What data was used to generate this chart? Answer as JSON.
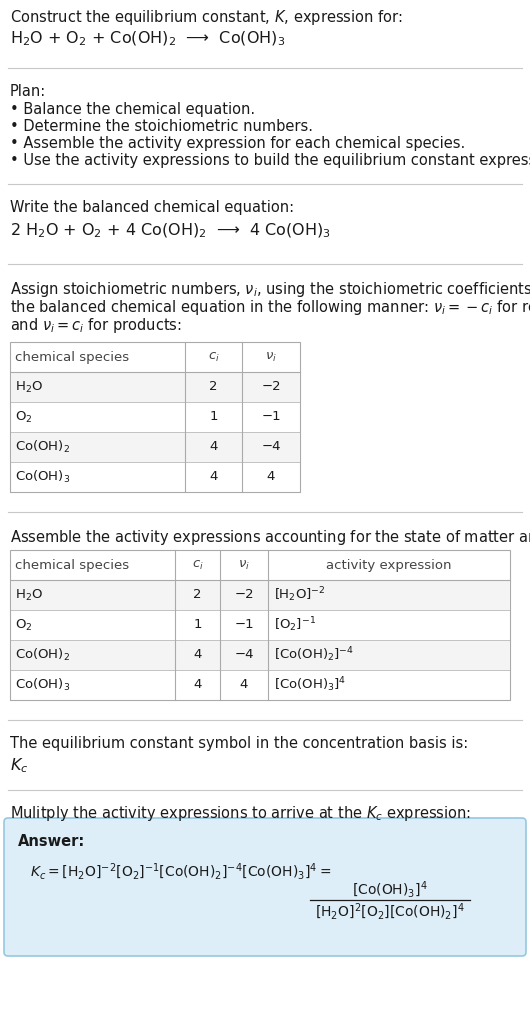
{
  "title_line1": "Construct the equilibrium constant, $K$, expression for:",
  "reaction_unbalanced": "H$_2$O + O$_2$ + Co(OH)$_2$  ⟶  Co(OH)$_3$",
  "plan_header": "Plan:",
  "plan_bullets": [
    "• Balance the chemical equation.",
    "• Determine the stoichiometric numbers.",
    "• Assemble the activity expression for each chemical species.",
    "• Use the activity expressions to build the equilibrium constant expression."
  ],
  "balanced_header": "Write the balanced chemical equation:",
  "reaction_balanced": "2 H$_2$O + O$_2$ + 4 Co(OH)$_2$  ⟶  4 Co(OH)$_3$",
  "stoich_header_lines": [
    "Assign stoichiometric numbers, $\\nu_i$, using the stoichiometric coefficients, $c_i$, from",
    "the balanced chemical equation in the following manner: $\\nu_i = -c_i$ for reactants",
    "and $\\nu_i = c_i$ for products:"
  ],
  "table1_headers": [
    "chemical species",
    "$c_i$",
    "$\\nu_i$"
  ],
  "table1_data": [
    [
      "H$_2$O",
      "2",
      "−2"
    ],
    [
      "O$_2$",
      "1",
      "−1"
    ],
    [
      "Co(OH)$_2$",
      "4",
      "−4"
    ],
    [
      "Co(OH)$_3$",
      "4",
      "4"
    ]
  ],
  "activity_header": "Assemble the activity expressions accounting for the state of matter and $\\nu_i$:",
  "table2_headers": [
    "chemical species",
    "$c_i$",
    "$\\nu_i$",
    "activity expression"
  ],
  "table2_data": [
    [
      "H$_2$O",
      "2",
      "−2",
      "[H$_2$O]$^{-2}$"
    ],
    [
      "O$_2$",
      "1",
      "−1",
      "[O$_2$]$^{-1}$"
    ],
    [
      "Co(OH)$_2$",
      "4",
      "−4",
      "[Co(OH)$_2$]$^{-4}$"
    ],
    [
      "Co(OH)$_3$",
      "4",
      "4",
      "[Co(OH)$_3$]$^{4}$"
    ]
  ],
  "kc_header": "The equilibrium constant symbol in the concentration basis is:",
  "kc_symbol": "$K_c$",
  "multiply_header": "Mulitply the activity expressions to arrive at the $K_c$ expression:",
  "answer_label": "Answer:",
  "bg_color": "#ffffff",
  "answer_bg": "#ddeef8",
  "answer_border": "#96c8e0",
  "sep_color": "#c8c8c8",
  "text_color": "#1a1a1a",
  "table_border": "#aaaaaa"
}
